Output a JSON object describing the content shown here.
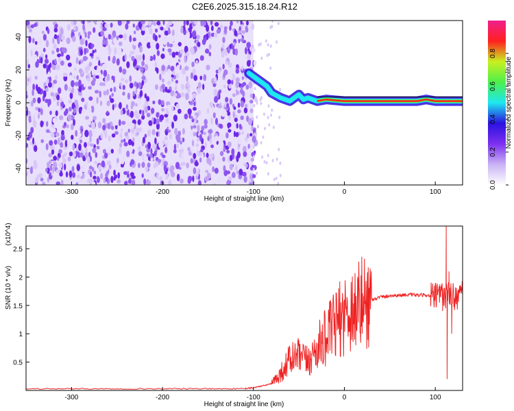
{
  "title": "C2E6.2025.315.18.24.R12",
  "chart_data": [
    {
      "type": "heatmap",
      "xlabel": "Height of straight line (km)",
      "ylabel": "Frequency (Hz)",
      "xlim": [
        -350,
        130
      ],
      "ylim": [
        -50,
        50
      ],
      "xticks": [
        -300,
        -200,
        -100,
        0,
        100
      ],
      "yticks": [
        -40,
        -20,
        0,
        20,
        40
      ],
      "colorbar": {
        "label": "Normalized spectral amplitude",
        "range": [
          0,
          1
        ],
        "ticks": [
          "0.0",
          "0.2",
          "0.4",
          "0.6",
          "0.8"
        ],
        "colors": [
          "#ffffff",
          "#c9b3f5",
          "#7d2ff0",
          "#2a12e0",
          "#1ee8f0",
          "#4cf04c",
          "#c8f020",
          "#ff2020",
          "#f0208c"
        ]
      },
      "ridge": {
        "x": [
          -105,
          -95,
          -85,
          -80,
          -70,
          -60,
          -50,
          -45,
          -40,
          -30,
          -20,
          0,
          20,
          40,
          60,
          80,
          90,
          100,
          110,
          130
        ],
        "freq": [
          18,
          14,
          10,
          6,
          3,
          1,
          5,
          2,
          3,
          1,
          2,
          1,
          1,
          1,
          1,
          1,
          2,
          1,
          1,
          1
        ]
      },
      "noise_region_x": [
        -350,
        -100
      ]
    },
    {
      "type": "line",
      "xlabel": "Height of straight line (km)",
      "ylabel": "SNR (10 * v/v)",
      "y_multiplier": "(x10^4)",
      "xlim": [
        -350,
        130
      ],
      "ylim": [
        0,
        2.9
      ],
      "xticks": [
        -300,
        -200,
        -100,
        0,
        100
      ],
      "yticks": [
        0.5,
        1,
        1.5,
        2,
        2.5
      ],
      "series": [
        {
          "color": "#ee2222",
          "x": [
            -350,
            -300,
            -250,
            -200,
            -150,
            -110,
            -100,
            -90,
            -80,
            -70,
            -60,
            -50,
            -40,
            -30,
            -20,
            -10,
            0,
            10,
            20,
            30,
            40,
            50,
            60,
            70,
            80,
            90,
            100,
            110,
            120,
            130
          ],
          "y": [
            0.03,
            0.03,
            0.03,
            0.03,
            0.03,
            0.03,
            0.05,
            0.08,
            0.12,
            0.3,
            0.55,
            0.6,
            0.5,
            0.75,
            0.95,
            1.15,
            1.35,
            1.45,
            1.55,
            1.6,
            1.65,
            1.67,
            1.68,
            1.69,
            1.68,
            1.68,
            1.65,
            1.7,
            1.66,
            1.68
          ]
        }
      ]
    }
  ]
}
